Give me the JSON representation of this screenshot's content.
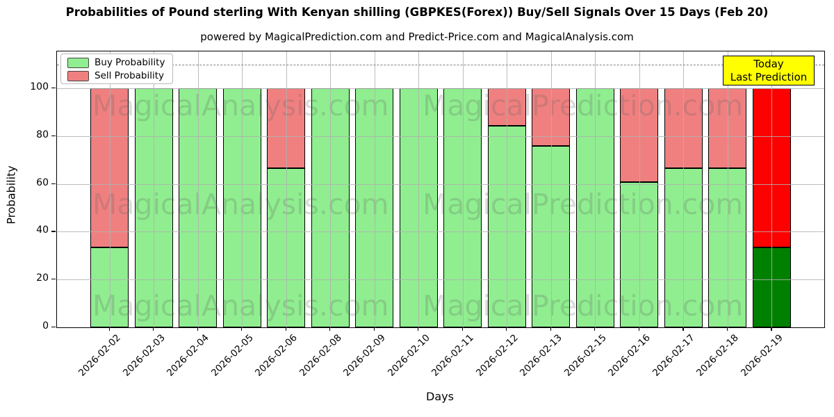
{
  "header": {
    "title": "Probabilities of Pound sterling With Kenyan shilling (GBPKES(Forex)) Buy/Sell Signals Over 15 Days (Feb 20)",
    "subtitle": "powered by MagicalPrediction.com and Predict-Price.com and MagicalAnalysis.com"
  },
  "legend": {
    "buy_label": "Buy Probability",
    "sell_label": "Sell Probability"
  },
  "annotation_box": {
    "line1": "Today",
    "line2": "Last Prediction",
    "bg_color": "#ffff00"
  },
  "watermarks": {
    "left_text": "MagicalAnalysis.com",
    "right_text": "MagicalPrediction.com"
  },
  "colors": {
    "buy": "#90EE90",
    "sell": "#F08080",
    "today_buy": "#008000",
    "today_sell": "#FF0000",
    "grid": "#b0b0b0",
    "dashed_line": "#7f7f7f"
  },
  "chart_data": {
    "type": "bar",
    "stacked": true,
    "title": "Probabilities of Pound sterling With Kenyan shilling (GBPKES(Forex)) Buy/Sell Signals Over 15 Days (Feb 20)",
    "xlabel": "Days",
    "ylabel": "Probability",
    "yticks": [
      0,
      20,
      40,
      60,
      80,
      100
    ],
    "ylim": [
      0,
      115.4
    ],
    "xlim": [
      -1.19,
      16.19
    ],
    "grid": true,
    "legend_position": "upper-left",
    "dashed_reference_line_y": 110,
    "categories": [
      "2026-02-02",
      "2026-02-03",
      "2026-02-04",
      "2026-02-05",
      "2026-02-06",
      "2026-02-08",
      "2026-02-09",
      "2026-02-10",
      "2026-02-11",
      "2026-02-12",
      "2026-02-13",
      "2026-02-15",
      "2026-02-16",
      "2026-02-17",
      "2026-02-18",
      "2026-02-19"
    ],
    "series": [
      {
        "name": "Buy Probability",
        "color": "#90EE90",
        "values": [
          33.3,
          100,
          100,
          100,
          66.7,
          100,
          100,
          100,
          100,
          84.3,
          75.9,
          100,
          60.7,
          66.7,
          66.7,
          33.3
        ]
      },
      {
        "name": "Sell Probability",
        "color": "#F08080",
        "values": [
          66.7,
          0,
          0,
          0,
          33.3,
          0,
          0,
          0,
          0,
          15.7,
          24.1,
          0,
          39.3,
          33.3,
          33.3,
          66.7
        ]
      }
    ],
    "today_index": 15,
    "today_colors": {
      "buy": "#008000",
      "sell": "#FF0000"
    }
  }
}
